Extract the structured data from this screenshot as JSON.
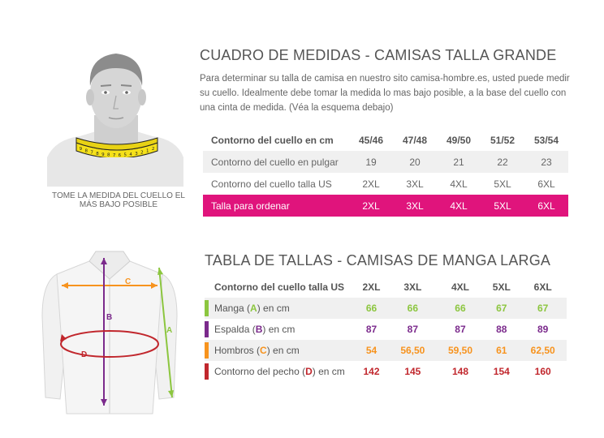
{
  "section1": {
    "title": "CUADRO DE MEDIDAS - CAMISAS TALLA GRANDE",
    "description": "Para determinar su talla de camisa en nuestro sito camisa-hombre.es, usted puede medir su cuello. Idealmente debe tomar la medida lo mas bajo posible, a la base del cuello con una cinta de medida. (Véa la esquema debajo)",
    "neck_caption": "TOME LA MEDIDA DEL CUELLO EL MÁS BAJO POSIBLE",
    "table": {
      "header": {
        "label": "Contorno del cuello  en cm",
        "values": [
          "45/46",
          "47/48",
          "49/50",
          "51/52",
          "53/54"
        ]
      },
      "rows": [
        {
          "label": "Contorno del  cuello en pulgar",
          "values": [
            "19",
            "20",
            "21",
            "22",
            "23"
          ]
        },
        {
          "label": "Contorno del  cuello talla US",
          "values": [
            "2XL",
            "3XL",
            "4XL",
            "5XL",
            "6XL"
          ]
        },
        {
          "label": "Talla para ordenar",
          "values": [
            "2XL",
            "3XL",
            "4XL",
            "5XL",
            "6XL"
          ]
        }
      ]
    }
  },
  "section2": {
    "title": "TABLA DE TALLAS - CAMISAS DE MANGA LARGA",
    "table": {
      "header": {
        "label": "Contorno del cuello talla US",
        "values": [
          "2XL",
          "3XL",
          "4XL",
          "5XL",
          "6XL"
        ]
      },
      "rows": [
        {
          "pre": "Manga (",
          "letter": "A",
          "post": ") en cm",
          "color": "#8cc63f",
          "values": [
            "66",
            "66",
            "66",
            "67",
            "67"
          ]
        },
        {
          "pre": "Espalda (",
          "letter": "B",
          "post": ") en cm",
          "color": "#7b2a8c",
          "values": [
            "87",
            "87",
            "87",
            "88",
            "89"
          ]
        },
        {
          "pre": "Hombros (",
          "letter": "C",
          "post": ") en cm",
          "color": "#f7931e",
          "values": [
            "54",
            "56,50",
            "59,50",
            "61",
            "62,50"
          ]
        },
        {
          "pre": "Contorno del pecho (",
          "letter": "D",
          "post": ") en cm",
          "color": "#c1272d",
          "values": [
            "142",
            "145",
            "148",
            "154",
            "160"
          ]
        }
      ]
    },
    "shirt_labels": {
      "a": "A",
      "b": "B",
      "c": "C",
      "d": "D"
    }
  },
  "tape_marks": [
    "9",
    "8",
    "7",
    "8",
    "9",
    "8",
    "7",
    "6",
    "5",
    "4",
    "3",
    "2",
    "1",
    "2"
  ],
  "colors": {
    "accent_pink": "#e0147c",
    "tape_yellow": "#f5e11a",
    "sleeve_green": "#8cc63f",
    "back_purple": "#7b2a8c",
    "shoulder_orange": "#f7931e",
    "chest_red": "#c1272d"
  },
  "icons": [
    "head-neck-illustration",
    "measuring-tape-icon",
    "shirt-illustration"
  ]
}
